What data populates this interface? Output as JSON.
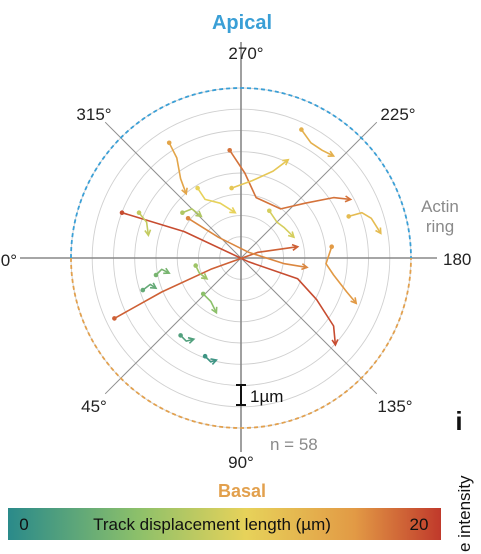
{
  "chart_data": {
    "type": "polar-trajectories",
    "labels": {
      "top": "Apical",
      "bottom": "Basal",
      "ring_line1": "Actin",
      "ring_line2": "ring",
      "count": "n = 58",
      "scalebar": "1µm",
      "panel": "i",
      "side_partial": "e intensity",
      "colorbar_title": "Track displacement length (µm)",
      "colorbar_min": "0",
      "colorbar_max": "20"
    },
    "angle_labels": [
      {
        "angle": 270,
        "text": "270°"
      },
      {
        "angle": 225,
        "text": "225°"
      },
      {
        "angle": 180,
        "text": "180"
      },
      {
        "angle": 135,
        "text": "135°"
      },
      {
        "angle": 90,
        "text": "90°"
      },
      {
        "angle": 45,
        "text": "45°"
      },
      {
        "angle": 0,
        "text": "0°"
      },
      {
        "angle": 315,
        "text": "315°"
      }
    ],
    "grid": {
      "rings": 8,
      "max_radius_um": 9,
      "spokes_deg": [
        0,
        45,
        90,
        135,
        180,
        225,
        270,
        315
      ]
    },
    "colors": {
      "apical": "#3a9fd6",
      "basal": "#e2a04d",
      "axis": "#888888",
      "grid": "#d0d0d0",
      "colormap": [
        "#2a8a8a",
        "#8cc06a",
        "#e7d25a",
        "#e29a45",
        "#c0392b"
      ]
    },
    "colorbar_range": [
      0,
      20
    ],
    "tracks": [
      {
        "displacement": 19,
        "points": [
          [
            -6.3,
            -2.4
          ],
          [
            -3,
            -1.4
          ],
          [
            0.4,
            0.2
          ],
          [
            3,
            1.1
          ],
          [
            4,
            2.2
          ],
          [
            4.9,
            3.6
          ],
          [
            5,
            4.6
          ]
        ]
      },
      {
        "displacement": 18,
        "points": [
          [
            -6.7,
            3.2
          ],
          [
            -4.2,
            1.8
          ],
          [
            -1.6,
            0.6
          ],
          [
            0.9,
            -0.3
          ],
          [
            3,
            -0.6
          ]
        ]
      },
      {
        "displacement": 17,
        "points": [
          [
            -0.6,
            -5.7
          ],
          [
            0.2,
            -4.5
          ],
          [
            0.8,
            -3.2
          ],
          [
            2.1,
            -2.6
          ],
          [
            3.4,
            -2.9
          ],
          [
            4.9,
            -3.2
          ],
          [
            5.8,
            -3.1
          ]
        ]
      },
      {
        "displacement": 16,
        "points": [
          [
            -2.8,
            -2.1
          ],
          [
            -1.2,
            -1.1
          ],
          [
            0.4,
            -0.3
          ],
          [
            2.3,
            0.3
          ],
          [
            3.5,
            0.5
          ]
        ]
      },
      {
        "displacement": 15,
        "points": [
          [
            4.8,
            -0.6
          ],
          [
            4.5,
            0.3
          ],
          [
            4.9,
            0.9
          ],
          [
            5.6,
            1.8
          ],
          [
            6.1,
            2.4
          ]
        ]
      },
      {
        "displacement": 14,
        "points": [
          [
            -3.8,
            -6.1
          ],
          [
            -3.4,
            -5.3
          ],
          [
            -3.2,
            -4.2
          ],
          [
            -2.9,
            -3.4
          ]
        ]
      },
      {
        "displacement": 13,
        "points": [
          [
            3.2,
            -6.8
          ],
          [
            3.7,
            -6.1
          ],
          [
            4.3,
            -5.7
          ],
          [
            4.9,
            -5.4
          ]
        ]
      },
      {
        "displacement": 12,
        "points": [
          [
            5.7,
            -2.2
          ],
          [
            6.4,
            -2.4
          ],
          [
            6.9,
            -2.1
          ],
          [
            7.4,
            -1.3
          ]
        ]
      },
      {
        "displacement": 11,
        "points": [
          [
            -0.5,
            -3.7
          ],
          [
            0.6,
            -4.1
          ],
          [
            1.7,
            -4.6
          ],
          [
            2.5,
            -5.2
          ]
        ]
      },
      {
        "displacement": 10,
        "points": [
          [
            -2.3,
            -3.7
          ],
          [
            -1.9,
            -3.1
          ],
          [
            -1.1,
            -2.9
          ],
          [
            -0.3,
            -2.4
          ]
        ]
      },
      {
        "displacement": 9,
        "points": [
          [
            1.5,
            -2.5
          ],
          [
            1.9,
            -1.9
          ],
          [
            2.3,
            -1.6
          ],
          [
            2.8,
            -1.1
          ]
        ]
      },
      {
        "displacement": 8,
        "points": [
          [
            -5.4,
            -2.4
          ],
          [
            -5,
            -1.9
          ],
          [
            -4.9,
            -1.2
          ]
        ]
      },
      {
        "displacement": 7,
        "points": [
          [
            -3.1,
            -2.4
          ],
          [
            -2.6,
            -2.6
          ],
          [
            -2.1,
            -2.2
          ]
        ]
      },
      {
        "displacement": 6,
        "points": [
          [
            -2.4,
            0.4
          ],
          [
            -2.2,
            0.8
          ],
          [
            -1.8,
            1.1
          ]
        ]
      },
      {
        "displacement": 5,
        "points": [
          [
            -2,
            1.9
          ],
          [
            -1.6,
            2.3
          ],
          [
            -1.3,
            2.9
          ]
        ]
      },
      {
        "displacement": 4,
        "points": [
          [
            -4.5,
            0.9
          ],
          [
            -4.2,
            0.6
          ],
          [
            -3.8,
            0.8
          ]
        ]
      },
      {
        "displacement": 3,
        "points": [
          [
            -5.2,
            1.7
          ],
          [
            -4.8,
            1.4
          ],
          [
            -4.5,
            1.6
          ]
        ]
      },
      {
        "displacement": 2,
        "points": [
          [
            -3.2,
            4.1
          ],
          [
            -2.9,
            4.4
          ],
          [
            -2.5,
            4.3
          ]
        ]
      },
      {
        "displacement": 1,
        "points": [
          [
            -1.9,
            5.2
          ],
          [
            -1.6,
            5.5
          ],
          [
            -1.3,
            5.4
          ]
        ]
      }
    ]
  }
}
